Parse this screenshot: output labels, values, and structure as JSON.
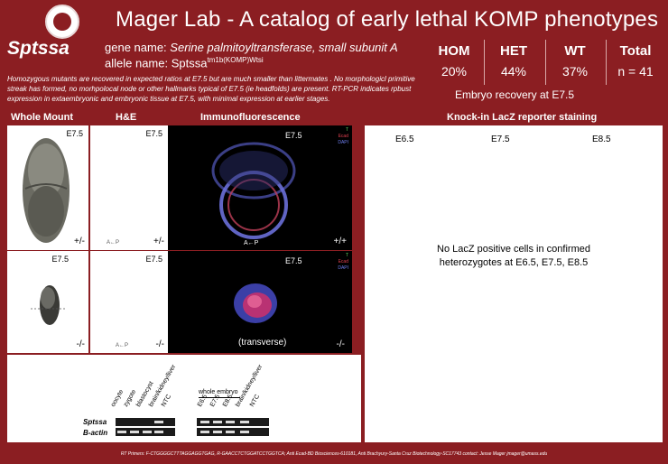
{
  "header": {
    "title": "Mager Lab - A catalog of early lethal KOMP phenotypes"
  },
  "gene": {
    "symbol": "Sptssa",
    "gene_name_label": "gene name:",
    "gene_name": "Serine palmitoyltransferase, small subunit A",
    "allele_label": "allele name:",
    "allele_base": "Sptssa",
    "allele_sup": "tm1b(KOMP)Wtsi",
    "description": "Homozygous mutants are recovered in expected ratios at E7.5 but are much smaller than littermates .  No morphologicl primitive streak has formed, no morhpolocal node or other hallmarks typical of E7.5 (ie headfolds) are present.   RT-PCR indicates rpbust expression in extaembryonic  and embryonic tissue at E7.5, with minimal expression at earlier stages."
  },
  "stats": {
    "hom": {
      "label": "HOM",
      "value": "20%"
    },
    "het": {
      "label": "HET",
      "value": "44%"
    },
    "wt": {
      "label": "WT",
      "value": "37%"
    },
    "total": {
      "label": "Total",
      "value": "n = 41"
    },
    "caption": "Embryo recovery at E7.5"
  },
  "columns": {
    "whole_mount": "Whole Mount",
    "he": "H&E",
    "if": "Immunofluorescence",
    "lacz": "Knock-in LacZ reporter staining"
  },
  "rows": {
    "top": {
      "stage": "E7.5",
      "wm_geno": "+/-",
      "he_geno": "+/-",
      "if_geno": "+/+",
      "axis": "A←P",
      "if_markers": [
        "T",
        "Ecad",
        "DAPI"
      ]
    },
    "bottom": {
      "stage": "E7.5",
      "wm_geno": "-/-",
      "he_geno": "-/-",
      "if_geno": "-/-",
      "axis": "A←P",
      "if_note": "(transverse)",
      "if_markers": [
        "T",
        "Ecad",
        "DAPI"
      ]
    }
  },
  "lacz": {
    "stages": [
      "E6.5",
      "E7.5",
      "E8.5"
    ],
    "message_line1": "No LacZ positive cells in confirmed",
    "message_line2": "heterozygotes at E6.5, E7.5, E8.5"
  },
  "gel": {
    "lanes_left": [
      "oocyte",
      "zygote",
      "blastocyst",
      "brain/kidney/liver",
      "NTC"
    ],
    "whole_embryo_label": "whole embryo",
    "lanes_right": [
      "E6.5",
      "E7.5",
      "E8.5",
      "brain/kidney/liver",
      "NTC"
    ],
    "row1": "Sptssa",
    "row2": "B-actin"
  },
  "footer": "RT Primers: F-CTGGGGCTTTAGGAGGTGAG, R-GAACCTCTGGATCCTGGTCA; Anti Ecad-BD Biosciences-610181, Anti Brachyury-Santa Cruz Biotechnology-SC17743 contact: Jesse Mager jmager@umass.edu"
}
